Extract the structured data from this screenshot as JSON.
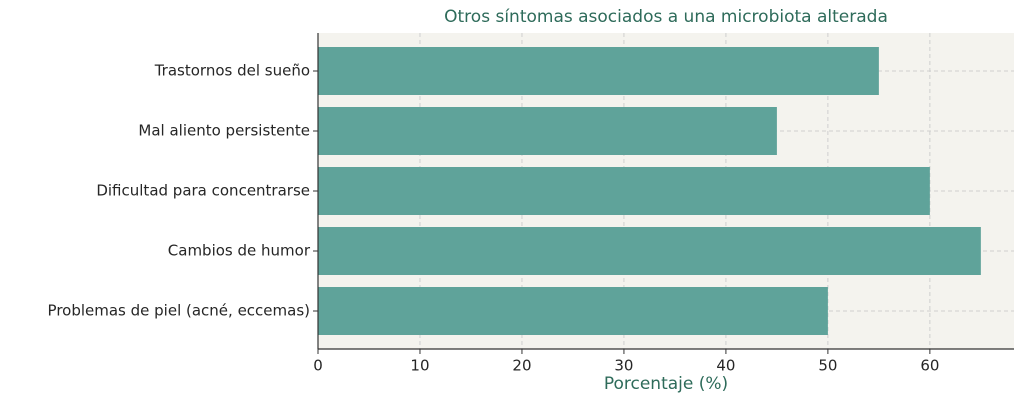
{
  "chart_data": {
    "type": "bar",
    "orientation": "horizontal",
    "title": "Otros síntomas asociados a una microbiota alterada",
    "xlabel": "Porcentaje (%)",
    "categories": [
      "Trastornos del sueño",
      "Mal aliento persistente",
      "Dificultad para concentrarse",
      "Cambios de humor",
      "Problemas de piel (acné, eccemas)"
    ],
    "values": [
      55,
      45,
      60,
      65,
      50
    ],
    "color": "#5fa39a",
    "xlim": [
      0,
      68.25
    ],
    "xticks": [
      0,
      10,
      20,
      30,
      40,
      50,
      60
    ],
    "grid": true
  }
}
